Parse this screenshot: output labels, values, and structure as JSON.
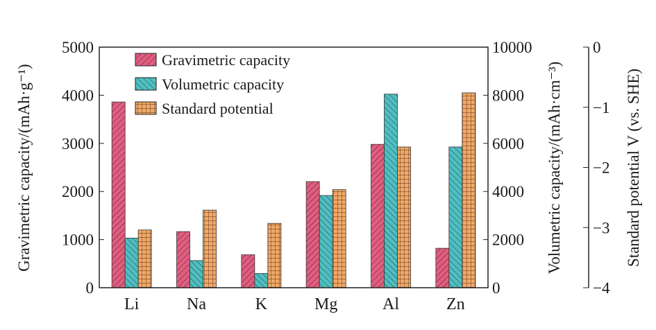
{
  "chart_data": {
    "type": "bar",
    "categories": [
      "Li",
      "Na",
      "K",
      "Mg",
      "Al",
      "Zn"
    ],
    "series": [
      {
        "name": "Gravimetric capacity",
        "axis": "left",
        "color": "#e35d80",
        "pattern": "diagonal-up",
        "values": [
          3860,
          1166,
          685,
          2205,
          2980,
          820
        ]
      },
      {
        "name": "Volumetric capacity",
        "axis": "right1",
        "color": "#4fbfc1",
        "pattern": "diagonal-down",
        "values": [
          2062,
          1128,
          591,
          3833,
          8046,
          5851
        ]
      },
      {
        "name": "Standard potential",
        "axis": "right2",
        "color": "#f2a866",
        "pattern": "grid",
        "values": [
          -3.04,
          -2.71,
          -2.93,
          -2.37,
          -1.66,
          -0.76
        ]
      }
    ],
    "axes": {
      "left": {
        "label": "Gravimetric capacity/(mAh·g⁻¹)",
        "range": [
          0,
          5000
        ],
        "ticks": [
          "0",
          "1000",
          "2000",
          "3000",
          "4000",
          "5000"
        ]
      },
      "right1": {
        "label": "Volumetric capacity/(mAh·cm⁻³)",
        "range": [
          0,
          10000
        ],
        "ticks": [
          "0",
          "2000",
          "4000",
          "6000",
          "8000",
          "10000"
        ]
      },
      "right2": {
        "label": "Standard potential V (vs. SHE)",
        "range": [
          -4,
          0
        ],
        "ticks": [
          "0",
          "−1",
          "−2",
          "−3",
          "−4"
        ]
      }
    },
    "legend": {
      "position": "top-left"
    },
    "grid": false
  }
}
